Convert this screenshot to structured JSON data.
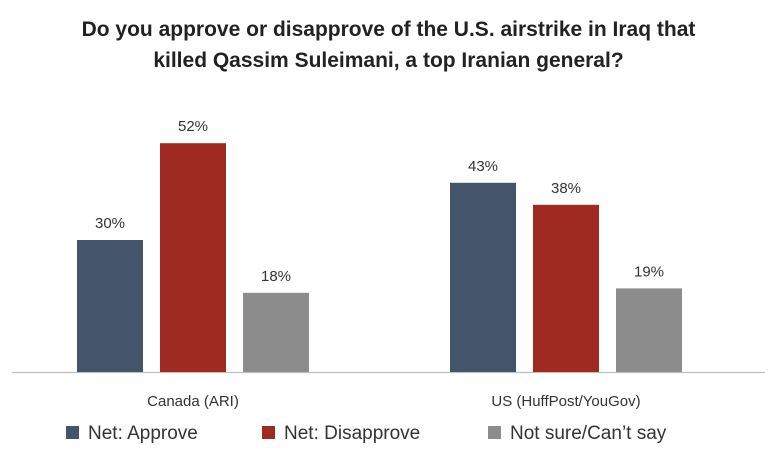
{
  "chart_data": {
    "type": "bar",
    "title_lines": [
      "Do you approve or disapprove of the U.S. airstrike in Iraq that",
      "killed Qassim Suleimani, a top Iranian general?"
    ],
    "categories": [
      "Canada (ARI)",
      "US (HuffPost/YouGov)"
    ],
    "series": [
      {
        "name": "Net: Approve",
        "color": "#44546A",
        "values": [
          30,
          43
        ]
      },
      {
        "name": "Net: Disapprove",
        "color": "#9E2A22",
        "values": [
          52,
          38
        ]
      },
      {
        "name": "Not sure/Can’t say",
        "color": "#8C8C8C",
        "values": [
          18,
          19
        ]
      }
    ],
    "value_suffix": "%",
    "ylim": [
      0,
      60
    ],
    "grid": false,
    "legend_position": "bottom"
  }
}
